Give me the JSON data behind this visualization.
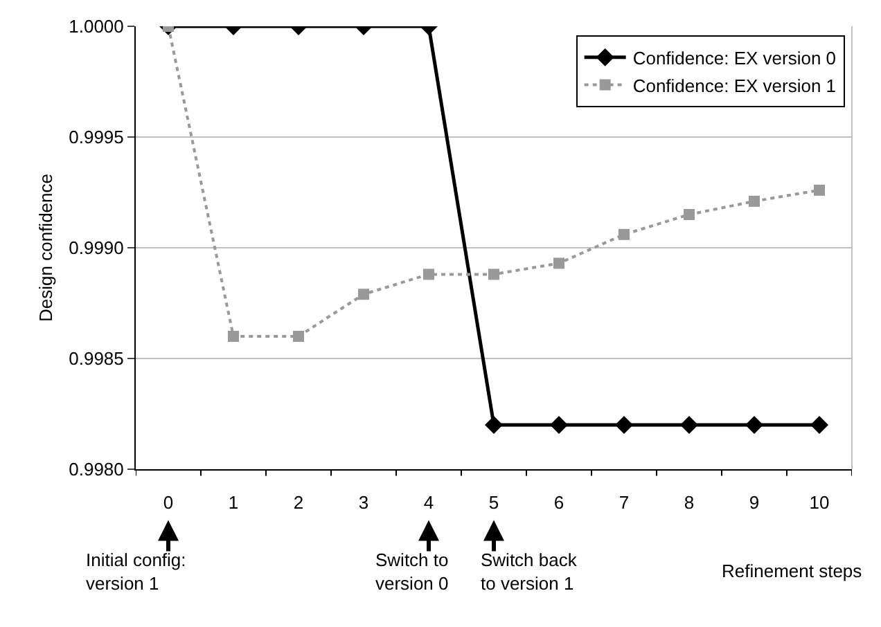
{
  "chart_data": {
    "type": "line",
    "categories": [
      "0",
      "1",
      "2",
      "3",
      "4",
      "5",
      "6",
      "7",
      "8",
      "9",
      "10"
    ],
    "xlabel": "Refinement steps",
    "ylabel": "Design confidence",
    "ylim": [
      0.998,
      1.0
    ],
    "yticks": [
      {
        "value": 0.998,
        "label": "0.9980"
      },
      {
        "value": 0.9985,
        "label": "0.9985"
      },
      {
        "value": 0.999,
        "label": "0.9990"
      },
      {
        "value": 0.9995,
        "label": "0.9995"
      },
      {
        "value": 1.0,
        "label": "1.0000"
      }
    ],
    "grid": "y",
    "legend": "top right",
    "series": [
      {
        "name": "Confidence: EX version 0",
        "color": "#000000",
        "marker": "diamond",
        "line_style": "solid",
        "values": [
          1.0,
          1.0,
          1.0,
          1.0,
          1.0,
          0.9982,
          0.9982,
          0.9982,
          0.9982,
          0.9982,
          0.9982
        ]
      },
      {
        "name": "Confidence: EX version 1",
        "color": "#999999",
        "marker": "square",
        "line_style": "dotted",
        "values": [
          1.0,
          0.9986,
          0.9986,
          0.99879,
          0.99888,
          0.99888,
          0.99893,
          0.99906,
          0.99915,
          0.99921,
          0.99926
        ]
      }
    ],
    "annotations": [
      "Initial config:\nversion 1",
      "Switch to\nversion 0",
      "Switch back\nto version 1"
    ]
  }
}
